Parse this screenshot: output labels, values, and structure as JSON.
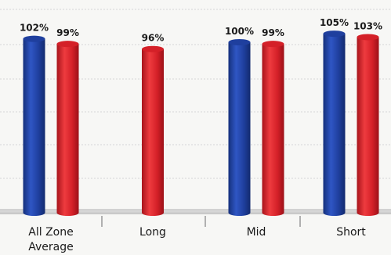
{
  "chart_data": {
    "type": "bar",
    "categories": [
      "All Zone Average",
      "Long",
      "Mid",
      "Short"
    ],
    "category_labels": [
      [
        "All Zone",
        "Average"
      ],
      [
        "Long"
      ],
      [
        "Mid"
      ],
      [
        "Short"
      ]
    ],
    "series": [
      {
        "values": [
          102,
          null,
          100,
          105
        ],
        "color": "#1f3f9e"
      },
      {
        "values": [
          99,
          96,
          99,
          103
        ],
        "color": "#d42028"
      }
    ],
    "value_suffix": "%",
    "ylim": [
      0,
      120
    ],
    "grid": true,
    "legend": "none"
  }
}
